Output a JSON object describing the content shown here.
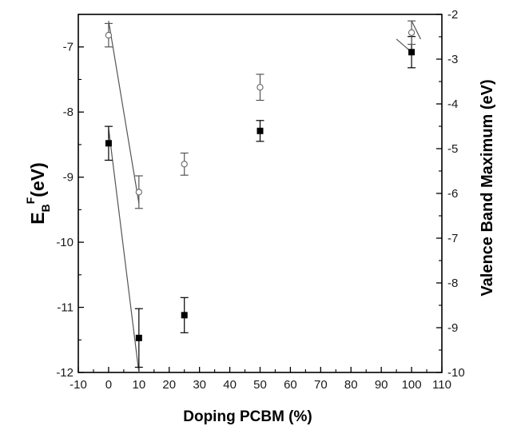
{
  "chart_data": {
    "type": "scatter",
    "xlabel": "Doping PCBM (%)",
    "ylabel_left": {
      "main": "E",
      "sub": "B",
      "sup": "F",
      "rest": "(eV)"
    },
    "ylabel_right": "Valence Band Maximum (eV)",
    "xlim": [
      -10,
      110
    ],
    "ylim_left": [
      -12,
      -6.5
    ],
    "ylim_right": [
      -10,
      -2
    ],
    "x_ticks": [
      -10,
      0,
      10,
      20,
      30,
      40,
      50,
      60,
      70,
      80,
      90,
      100,
      110
    ],
    "y_left_ticks": [
      -12,
      -11,
      -10,
      -9,
      -8,
      -7
    ],
    "y_right_ticks": [
      -10,
      -9,
      -8,
      -7,
      -6,
      -5,
      -4,
      -3,
      -2
    ],
    "grid": false,
    "series": [
      {
        "marker": "filled-square",
        "axis": "left",
        "points": [
          {
            "x": 0,
            "y": -8.48,
            "err": 0.26
          },
          {
            "x": 10,
            "y": -11.47,
            "err": 0.45
          },
          {
            "x": 25,
            "y": -11.12,
            "err": 0.27
          },
          {
            "x": 50,
            "y": -8.29,
            "err": 0.16
          },
          {
            "x": 100,
            "y": -7.08,
            "err": 0.24
          }
        ]
      },
      {
        "marker": "open-circle",
        "axis": "left",
        "points": [
          {
            "x": 0,
            "y": -6.82,
            "err": 0.18
          },
          {
            "x": 10,
            "y": -9.23,
            "err": 0.25
          },
          {
            "x": 25,
            "y": -8.8,
            "err": 0.17
          },
          {
            "x": 50,
            "y": -7.62,
            "err": 0.2
          },
          {
            "x": 100,
            "y": -6.78,
            "err": 0.18
          }
        ]
      }
    ],
    "trend_lines": [
      {
        "x": [
          0,
          10
        ],
        "y": [
          -8.25,
          -12
        ]
      },
      {
        "x": [
          0,
          10
        ],
        "y": [
          -6.6,
          -9.4
        ]
      },
      {
        "x": [
          95,
          100
        ],
        "y": [
          -6.88,
          -7.08
        ]
      },
      {
        "x": [
          100,
          103
        ],
        "y": [
          -6.6,
          -6.88
        ]
      }
    ]
  }
}
